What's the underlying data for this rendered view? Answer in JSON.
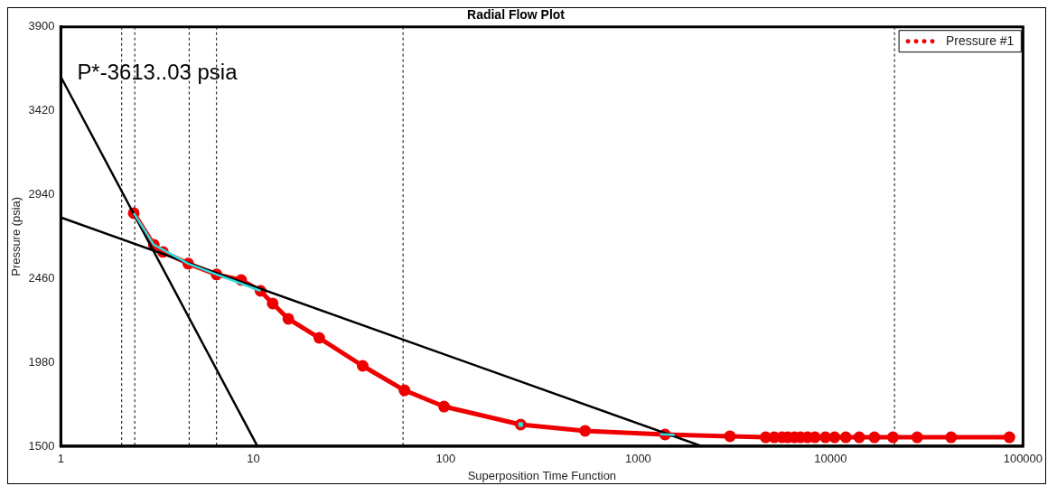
{
  "chart_data": {
    "type": "line",
    "title": "Radial Flow Plot",
    "xlabel": "Superposition Time Function",
    "ylabel": "Pressure (psia)",
    "log": "x",
    "xlim": [
      1,
      100000
    ],
    "xticks": [
      1,
      10,
      100,
      1000,
      10000,
      100000
    ],
    "ylim": [
      1500,
      3900
    ],
    "yticks": [
      1500,
      1980,
      2460,
      2940,
      3420,
      3900
    ],
    "grid": false,
    "legend": "top right",
    "annotations": [
      "P*-3613..03 psia"
    ],
    "ref_lines": [
      {
        "axis": "x",
        "value": 2.07,
        "color": "#000000",
        "line_style": "dashed"
      },
      {
        "axis": "x",
        "value": 2.42,
        "color": "#000000",
        "line_style": "dashed"
      },
      {
        "axis": "x",
        "value": 4.64,
        "color": "#000000",
        "line_style": "dashed"
      },
      {
        "axis": "x",
        "value": 6.44,
        "color": "#000000",
        "line_style": "dashed"
      },
      {
        "axis": "x",
        "value": 60,
        "color": "#000000",
        "line_style": "dashed"
      },
      {
        "axis": "x",
        "value": 21500,
        "color": "#000000",
        "line_style": "dashed"
      }
    ],
    "series": [
      {
        "name": "Pressure #1",
        "type": "line",
        "marker": "circle",
        "color": "#ee0000",
        "x": [
          2.39,
          3.04,
          3.39,
          4.59,
          6.44,
          8.65,
          10.9,
          12.6,
          15.2,
          22,
          37,
          61,
          98,
          245,
          530,
          1380,
          3000,
          4600,
          5100,
          5600,
          6000,
          6500,
          7000,
          7600,
          8300,
          9400,
          10500,
          12000,
          14100,
          16900,
          21100,
          28200,
          42300,
          85000
        ],
        "values": [
          2834,
          2653,
          2612,
          2545,
          2483,
          2451,
          2389,
          2317,
          2229,
          2120,
          1960,
          1820,
          1727,
          1624,
          1588,
          1567,
          1557,
          1551,
          1551,
          1551,
          1551,
          1551,
          1551,
          1551,
          1551,
          1551,
          1551,
          1551,
          1551,
          1551,
          1551,
          1551,
          1551,
          1551
        ]
      },
      {
        "type": "line",
        "marker": "none",
        "color": "#33dddd",
        "x": [
          2.39,
          3.04,
          4.59,
          6.44,
          10.9
        ],
        "values": [
          2834,
          2653,
          2545,
          2483,
          2389
        ]
      },
      {
        "type": "line",
        "marker": "none",
        "color": "#33dddd",
        "x": [
          1300,
          1550
        ],
        "values": [
          1569,
          1564
        ]
      },
      {
        "type": "scatter",
        "marker": "square",
        "color": "#33dddd",
        "x": [
          245
        ],
        "values": [
          1624
        ]
      },
      {
        "marker": "none",
        "color": "#000000",
        "x": [
          1,
          10.5
        ],
        "values": [
          3613,
          1500
        ]
      },
      {
        "marker": "none",
        "color": "#000000",
        "x": [
          1,
          2140
        ],
        "values": [
          2809,
          1500
        ]
      }
    ]
  }
}
